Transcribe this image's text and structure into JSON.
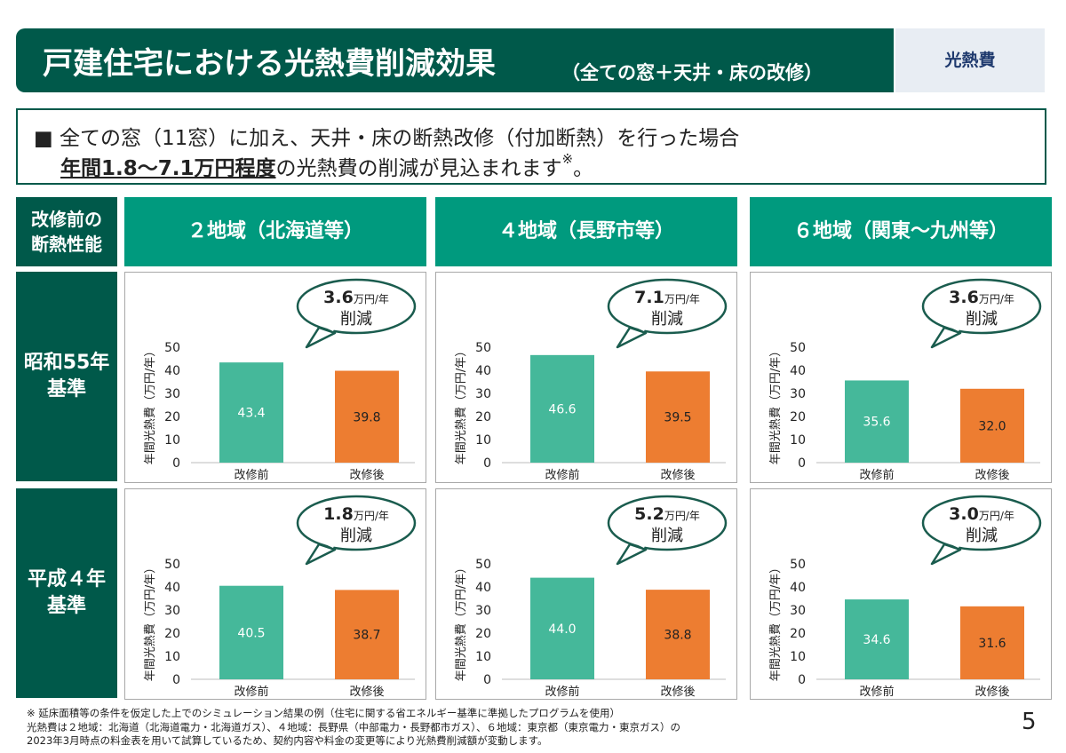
{
  "header": {
    "title": "戸建住宅における光熱費削減効果",
    "subtitle": "（全ての窓＋天井・床の改修）",
    "tag": "光熱費"
  },
  "intro": {
    "line1": "■ 全ての窓（11窓）に加え、天井・床の断熱改修（付加断熱）を行った場合",
    "line2_bold": "年間1.8～7.1万円程度",
    "line2_rest": "の光熱費の削減が見込まれます",
    "line2_mark": "※",
    "line2_end": "。"
  },
  "table": {
    "corner_label": "改修前の\n断熱性能",
    "regions": [
      "２地域（北海道等）",
      "４地域（長野市等）",
      "６地域（関東～九州等）"
    ],
    "rows": [
      "昭和55年\n基準",
      "平成４年\n基準"
    ]
  },
  "colors": {
    "before": "#45b89a",
    "after": "#ed7d31",
    "dark_green": "#00594a",
    "mid_green": "#009a7e"
  },
  "chart_data": [
    {
      "type": "bar",
      "region": "２地域（北海道等）",
      "standard": "昭和55年基準",
      "categories": [
        "改修前",
        "改修後"
      ],
      "values": [
        43.4,
        39.8
      ],
      "ylabel": "年間光熱費（万円/年）",
      "ylim": [
        0,
        50
      ],
      "yticks": [
        0,
        10,
        20,
        30,
        40,
        50
      ],
      "callout_value": "3.6",
      "callout_unit": "万円/年",
      "callout_text": "削減"
    },
    {
      "type": "bar",
      "region": "４地域（長野市等）",
      "standard": "昭和55年基準",
      "categories": [
        "改修前",
        "改修後"
      ],
      "values": [
        46.6,
        39.5
      ],
      "ylabel": "年間光熱費（万円/年）",
      "ylim": [
        0,
        50
      ],
      "yticks": [
        0,
        10,
        20,
        30,
        40,
        50
      ],
      "callout_value": "7.1",
      "callout_unit": "万円/年",
      "callout_text": "削減"
    },
    {
      "type": "bar",
      "region": "６地域（関東～九州等）",
      "standard": "昭和55年基準",
      "categories": [
        "改修前",
        "改修後"
      ],
      "values": [
        35.6,
        32.0
      ],
      "ylabel": "年間光熱費（万円/年）",
      "ylim": [
        0,
        50
      ],
      "yticks": [
        0,
        10,
        20,
        30,
        40,
        50
      ],
      "callout_value": "3.6",
      "callout_unit": "万円/年",
      "callout_text": "削減"
    },
    {
      "type": "bar",
      "region": "２地域（北海道等）",
      "standard": "平成４年基準",
      "categories": [
        "改修前",
        "改修後"
      ],
      "values": [
        40.5,
        38.7
      ],
      "ylabel": "年間光熱費（万円/年）",
      "ylim": [
        0,
        50
      ],
      "yticks": [
        0,
        10,
        20,
        30,
        40,
        50
      ],
      "callout_value": "1.8",
      "callout_unit": "万円/年",
      "callout_text": "削減"
    },
    {
      "type": "bar",
      "region": "４地域（長野市等）",
      "standard": "平成４年基準",
      "categories": [
        "改修前",
        "改修後"
      ],
      "values": [
        44.0,
        38.8
      ],
      "ylabel": "年間光熱費（万円/年）",
      "ylim": [
        0,
        50
      ],
      "yticks": [
        0,
        10,
        20,
        30,
        40,
        50
      ],
      "callout_value": "5.2",
      "callout_unit": "万円/年",
      "callout_text": "削減"
    },
    {
      "type": "bar",
      "region": "６地域（関東～九州等）",
      "standard": "平成４年基準",
      "categories": [
        "改修前",
        "改修後"
      ],
      "values": [
        34.6,
        31.6
      ],
      "ylabel": "年間光熱費（万円/年）",
      "ylim": [
        0,
        50
      ],
      "yticks": [
        0,
        10,
        20,
        30,
        40,
        50
      ],
      "callout_value": "3.0",
      "callout_unit": "万円/年",
      "callout_text": "削減"
    }
  ],
  "footnote": "※ 延床面積等の条件を仮定した上でのシミュレーション結果の例（住宅に関する省エネルギー基準に準拠したプログラムを使用）\n光熱費は２地域：北海道（北海道電力・北海道ガス）、４地域：長野県（中部電力・長野都市ガス）、６地域：東京都（東京電力・東京ガス）の\n2023年3月時点の料金表を用いて試算しているため、契約内容や料金の変更等により光熱費削減額が変動します。",
  "page_number": "5"
}
